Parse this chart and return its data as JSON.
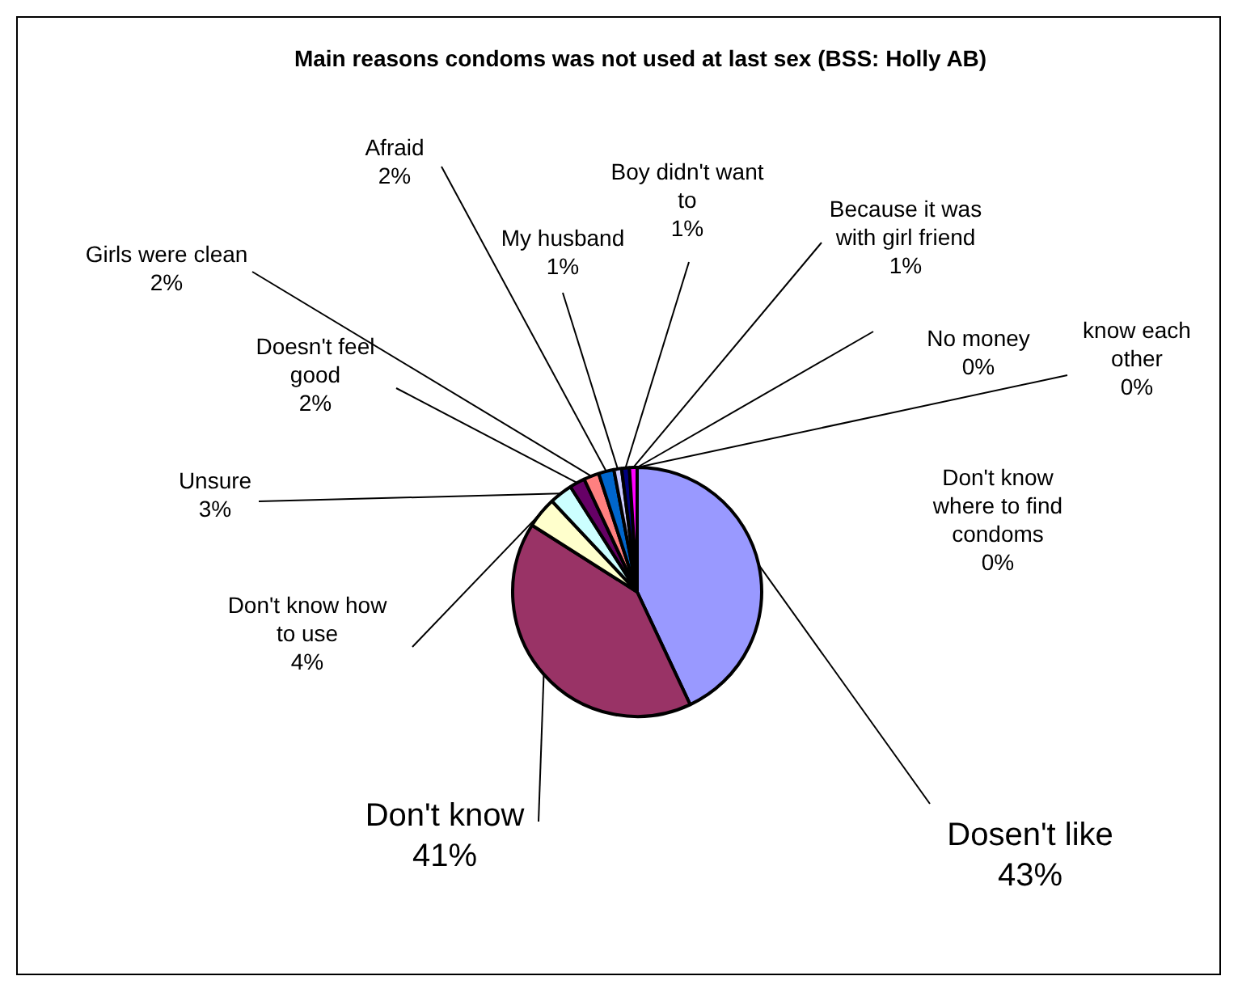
{
  "chart_data": {
    "type": "pie",
    "title": "Main reasons condoms was not used at last sex (BSS: Holly AB)",
    "categories": [
      "Dosen't like",
      "Don't know",
      "Don't know how to use",
      "Unsure",
      "Doesn't feel good",
      "Girls were clean",
      "Afraid",
      "My husband",
      "Boy didn't want to",
      "Because it was with girl friend",
      "No money",
      "know each other",
      "Don't know where to find condoms"
    ],
    "values": [
      43,
      41,
      4,
      3,
      2,
      2,
      2,
      1,
      1,
      1,
      0,
      0,
      0
    ],
    "value_labels": [
      "43%",
      "41%",
      "4%",
      "3%",
      "2%",
      "2%",
      "2%",
      "1%",
      "1%",
      "1%",
      "0%",
      "0%",
      "0%"
    ],
    "colors": [
      "#9999ff",
      "#993366",
      "#ffffcc",
      "#ccffff",
      "#660066",
      "#ff8080",
      "#0066cc",
      "#ccccff",
      "#000080",
      "#ff00ff",
      "#ffff00",
      "#00ffff",
      "#800080"
    ],
    "legend": false
  }
}
